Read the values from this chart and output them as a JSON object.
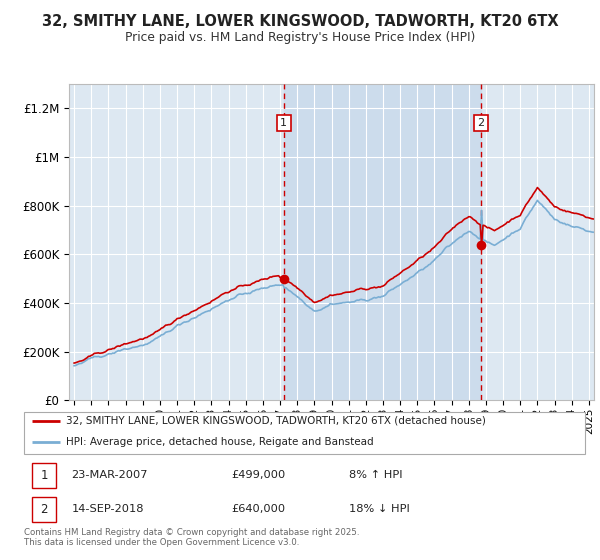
{
  "title": "32, SMITHY LANE, LOWER KINGSWOOD, TADWORTH, KT20 6TX",
  "subtitle": "Price paid vs. HM Land Registry's House Price Index (HPI)",
  "ylabel_ticks": [
    0,
    200000,
    400000,
    600000,
    800000,
    1000000,
    1200000
  ],
  "ylabel_labels": [
    "£0",
    "£200K",
    "£400K",
    "£600K",
    "£800K",
    "£1M",
    "£1.2M"
  ],
  "ylim": [
    0,
    1300000
  ],
  "xlim_start": 1994.7,
  "xlim_end": 2025.3,
  "background_color": "#ffffff",
  "plot_bg_color": "#dde8f2",
  "grid_color": "#ffffff",
  "red_line_color": "#cc0000",
  "blue_line_color": "#7aaed4",
  "shade_color": "#ccdcec",
  "vline_color": "#cc0000",
  "transaction1_x": 2007.22,
  "transaction1_y": 499000,
  "transaction2_x": 2018.71,
  "transaction2_y": 640000,
  "legend_line1": "32, SMITHY LANE, LOWER KINGSWOOD, TADWORTH, KT20 6TX (detached house)",
  "legend_line2": "HPI: Average price, detached house, Reigate and Banstead",
  "table_row1": [
    "1",
    "23-MAR-2007",
    "£499,000",
    "8% ↑ HPI"
  ],
  "table_row2": [
    "2",
    "14-SEP-2018",
    "£640,000",
    "18% ↓ HPI"
  ],
  "footer": "Contains HM Land Registry data © Crown copyright and database right 2025.\nThis data is licensed under the Open Government Licence v3.0."
}
